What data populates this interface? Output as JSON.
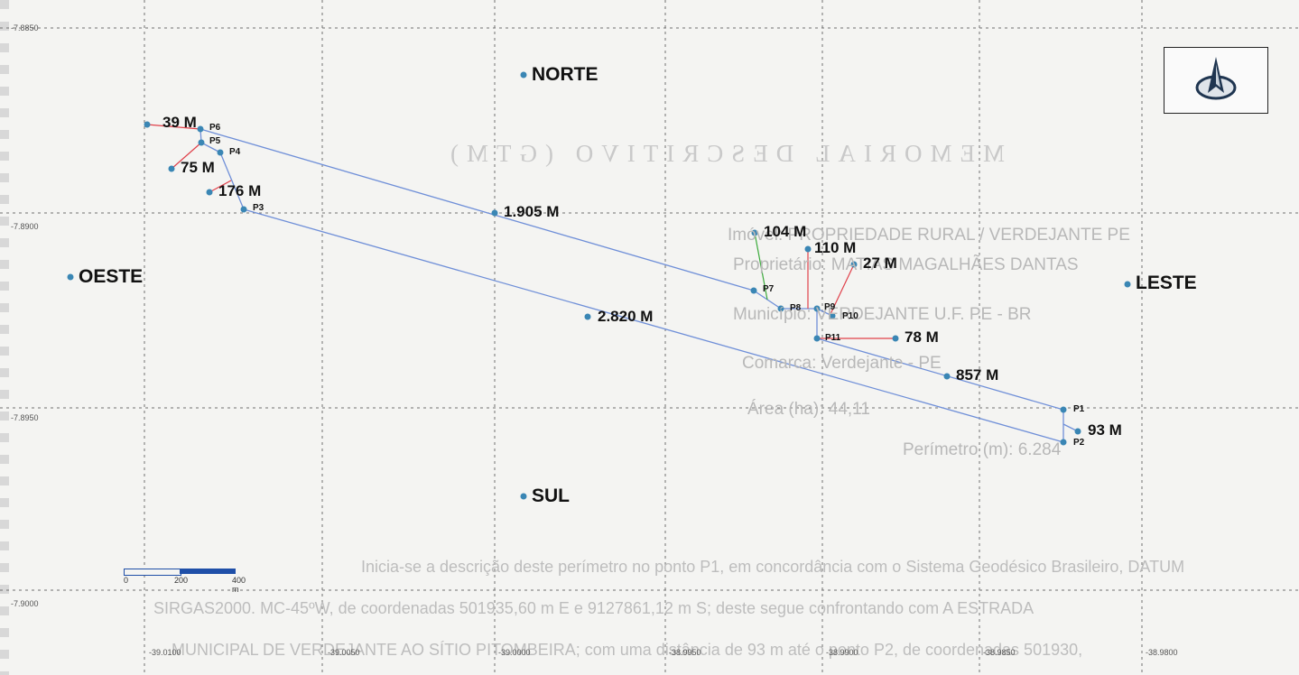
{
  "directions": {
    "north": "NORTE",
    "south": "SUL",
    "east": "LESTE",
    "west": "OESTE"
  },
  "segment_labels": [
    "39 M",
    "75 M",
    "176 M",
    "1.905 M",
    "104 M",
    "110 M",
    "27 M",
    "78 M",
    "2.820 M",
    "857 M",
    "93 M"
  ],
  "points": [
    "P1",
    "P2",
    "P3",
    "P4",
    "P5",
    "P6",
    "P7",
    "P8",
    "P9",
    "P10",
    "P11"
  ],
  "lat_ticks": [
    "-7.8850",
    "-7.8900",
    "-7.8950",
    "-7.9000"
  ],
  "lon_ticks": [
    "-39.0100",
    "-39.0050",
    "-39.0000",
    "-38.9950",
    "-38.9900",
    "-38.9850",
    "-38.9800"
  ],
  "scale_bar": {
    "labels": [
      "0",
      "200",
      "400 m"
    ]
  },
  "memorial": {
    "title": "MEMORIAL DESCRITIVO (GTM)",
    "lines": [
      "Imóvel: PROPRIEDADE RURAL / VERDEJANTE PE",
      "Proprietário: MATIAS MAGALHÃES DANTAS",
      "Município: VERDEJANTE U.F. PE - BR",
      "Comarca: Verdejante - PE",
      "Área (ha): 44,11",
      "Perímetro (m): 6.284"
    ],
    "paragraph": [
      "Inicia-se a descrição deste perímetro no ponto P1, em concordância com o Sistema Geodésico Brasileiro, DATUM",
      "SIRGAS2000. MC-45ºW, de coordenadas 501935,60 m E e 9127861,12 m S; deste segue confrontando com A ESTRADA",
      "MUNICIPAL DE VERDEJANTE AO SÍTIO PITOMBEIRA; com uma distância de 93 m até o ponto P2, de coordenadas 501930,"
    ]
  },
  "colors": {
    "boundary": "#6f8fd8",
    "marker": "#3a86b4",
    "red_line": "#e0404a",
    "green_line": "#3aaa3a",
    "grid": "#707070",
    "scale": "#1f4fa8"
  }
}
